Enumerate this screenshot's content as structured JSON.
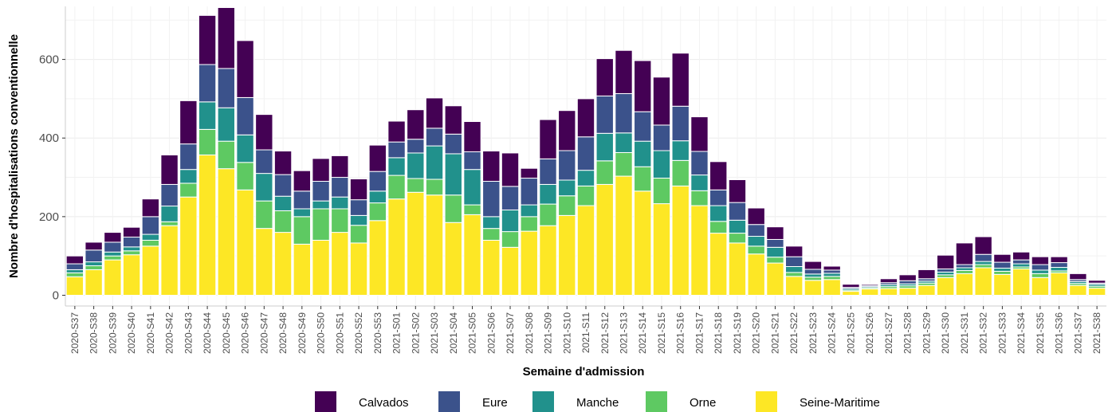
{
  "chart_data": {
    "type": "bar",
    "stacked": true,
    "xlabel": "Semaine d'admission",
    "ylabel": "Nombre d'hospitalisations conventionnelle",
    "ylim": [
      0,
      735
    ],
    "yticks": [
      0,
      200,
      400,
      600
    ],
    "grid": true,
    "legend_position": "bottom",
    "categories": [
      "2020-S37",
      "2020-S38",
      "2020-S39",
      "2020-S40",
      "2020-S41",
      "2020-S42",
      "2020-S43",
      "2020-S44",
      "2020-S45",
      "2020-S46",
      "2020-S47",
      "2020-S48",
      "2020-S49",
      "2020-S50",
      "2020-S51",
      "2020-S52",
      "2020-S53",
      "2021-S01",
      "2021-S02",
      "2021-S03",
      "2021-S04",
      "2021-S05",
      "2021-S06",
      "2021-S07",
      "2021-S08",
      "2021-S09",
      "2021-S10",
      "2021-S11",
      "2021-S12",
      "2021-S13",
      "2021-S14",
      "2021-S15",
      "2021-S16",
      "2021-S17",
      "2021-S18",
      "2021-S19",
      "2021-S20",
      "2021-S21",
      "2021-S22",
      "2021-S23",
      "2021-S24",
      "2021-S25",
      "2021-S26",
      "2021-S27",
      "2021-S28",
      "2021-S29",
      "2021-S30",
      "2021-S31",
      "2021-S32",
      "2021-S33",
      "2021-S34",
      "2021-S35",
      "2021-S36",
      "2021-S37",
      "2021-S38"
    ],
    "series": [
      {
        "name": "Seine-Maritime",
        "color": "#fde725",
        "values": [
          47,
          65,
          90,
          103,
          125,
          177,
          250,
          357,
          322,
          268,
          170,
          160,
          130,
          140,
          160,
          133,
          190,
          245,
          262,
          255,
          185,
          205,
          140,
          122,
          163,
          177,
          203,
          228,
          282,
          303,
          265,
          233,
          278,
          228,
          158,
          133,
          105,
          82,
          48,
          38,
          40,
          10,
          16,
          17,
          18,
          25,
          45,
          55,
          70,
          53,
          67,
          45,
          57,
          25,
          18
        ]
      },
      {
        "name": "Orne",
        "color": "#5ec962",
        "values": [
          10,
          10,
          10,
          10,
          15,
          10,
          35,
          65,
          70,
          70,
          70,
          55,
          70,
          80,
          60,
          45,
          45,
          60,
          35,
          40,
          70,
          25,
          30,
          40,
          37,
          55,
          50,
          50,
          60,
          60,
          62,
          65,
          65,
          38,
          30,
          25,
          20,
          15,
          10,
          8,
          8,
          3,
          3,
          5,
          6,
          6,
          7,
          8,
          8,
          8,
          5,
          10,
          5,
          5,
          5
        ]
      },
      {
        "name": "Manche",
        "color": "#21918c",
        "values": [
          8,
          10,
          10,
          10,
          15,
          40,
          35,
          70,
          85,
          70,
          70,
          37,
          20,
          20,
          30,
          25,
          30,
          45,
          65,
          85,
          105,
          90,
          30,
          55,
          30,
          50,
          40,
          40,
          70,
          50,
          65,
          70,
          50,
          40,
          40,
          33,
          25,
          25,
          15,
          8,
          8,
          4,
          3,
          5,
          5,
          5,
          7,
          7,
          8,
          8,
          8,
          9,
          9,
          5,
          5
        ]
      },
      {
        "name": "Eure",
        "color": "#3b528b",
        "values": [
          15,
          30,
          25,
          25,
          45,
          55,
          65,
          95,
          100,
          95,
          60,
          55,
          45,
          50,
          50,
          40,
          50,
          40,
          35,
          45,
          50,
          45,
          90,
          60,
          68,
          65,
          75,
          85,
          95,
          100,
          75,
          65,
          88,
          60,
          40,
          45,
          30,
          20,
          25,
          12,
          8,
          3,
          3,
          5,
          8,
          6,
          8,
          8,
          18,
          15,
          10,
          14,
          12,
          5,
          3
        ]
      },
      {
        "name": "Calvados",
        "color": "#440154",
        "values": [
          20,
          20,
          25,
          25,
          45,
          75,
          110,
          125,
          155,
          145,
          90,
          60,
          52,
          58,
          55,
          53,
          67,
          53,
          75,
          77,
          72,
          77,
          77,
          85,
          25,
          100,
          102,
          97,
          95,
          110,
          130,
          122,
          135,
          88,
          72,
          58,
          42,
          32,
          27,
          20,
          10,
          8,
          3,
          10,
          15,
          23,
          35,
          55,
          45,
          20,
          20,
          20,
          15,
          15,
          7
        ]
      }
    ]
  }
}
